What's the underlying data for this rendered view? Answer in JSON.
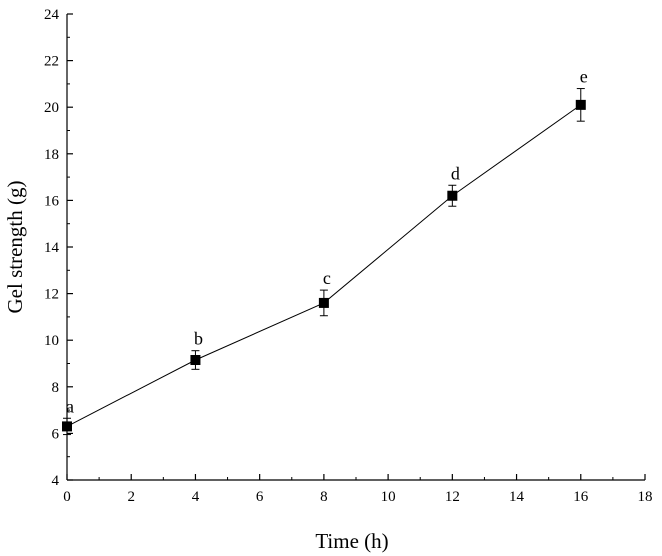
{
  "chart_data": {
    "type": "line",
    "xlabel": "Time (h)",
    "ylabel": "Gel strength (g)",
    "xlim": [
      0,
      18
    ],
    "ylim": [
      4,
      24
    ],
    "x_ticks": [
      0,
      2,
      4,
      6,
      8,
      10,
      12,
      14,
      16,
      18
    ],
    "y_ticks": [
      4,
      6,
      8,
      10,
      12,
      14,
      16,
      18,
      20,
      22,
      24
    ],
    "grid": false,
    "marker": "square",
    "line_color": "#000000",
    "series": [
      {
        "x": [
          0,
          4,
          8,
          12,
          16
        ],
        "y": [
          6.3,
          9.15,
          11.6,
          16.2,
          20.1
        ],
        "error": [
          0.35,
          0.4,
          0.55,
          0.45,
          0.7
        ],
        "labels": [
          "a",
          "b",
          "c",
          "d",
          "e"
        ]
      }
    ]
  }
}
